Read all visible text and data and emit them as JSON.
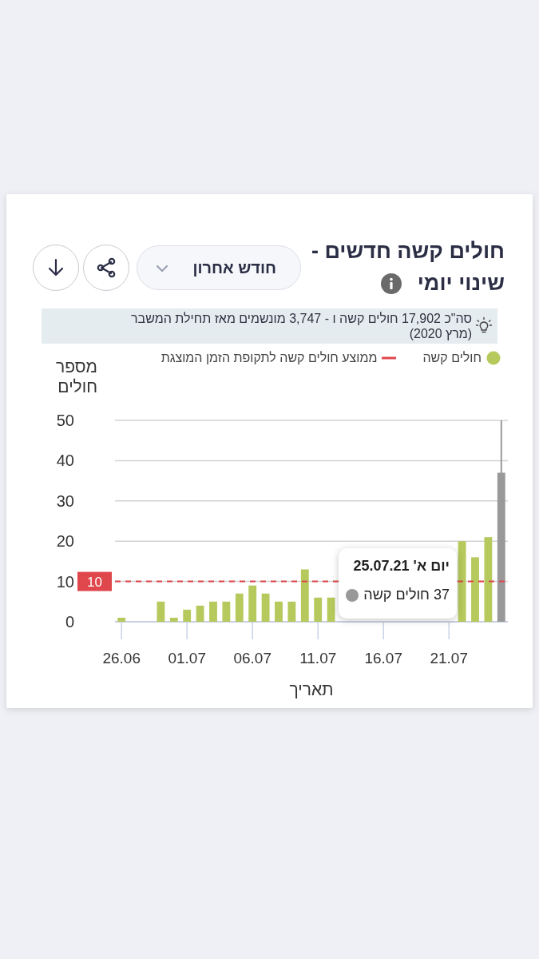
{
  "chart_data": {
    "type": "bar",
    "title": "חולים קשה חדשים - שינוי יומי",
    "subtitle": "סה\"כ 17,902 חולים קשה ו - 3,747 מונשמים מאז תחילת המשבר (מרץ 2020)",
    "xlabel": "תאריך",
    "ylabel": "מספר חולים",
    "x": [
      "--06-26",
      "--06-27",
      "--06-28",
      "--06-29",
      "--06-30",
      "--07-01",
      "--07-02",
      "--07-03",
      "--07-04",
      "--07-05",
      "--07-06",
      "--07-07",
      "--07-08",
      "--07-09",
      "--07-10",
      "--07-11",
      "--07-12",
      "--07-13",
      "--07-14",
      "--07-15",
      "--07-16",
      "--07-17",
      "--07-18",
      "--07-19",
      "--07-20",
      "--07-21",
      "--07-22",
      "--07-23",
      "--07-24",
      "--07-25"
    ],
    "xlim": [
      "--06-25T12:00",
      "--07-25T12:00"
    ],
    "xticks": [
      {
        "value": "--06-26",
        "label": "26.06"
      },
      {
        "value": "--07-01",
        "label": "01.07"
      },
      {
        "value": "--07-06",
        "label": "06.07"
      },
      {
        "value": "--07-11",
        "label": "11.07"
      },
      {
        "value": "--07-16",
        "label": "16.07"
      },
      {
        "value": "--07-21",
        "label": "21.07"
      }
    ],
    "ylim": [
      0,
      50
    ],
    "yticks": [
      0,
      10,
      20,
      30,
      40,
      50
    ],
    "grid": "y",
    "legend": "top right",
    "series": [
      {
        "name": "חולים קשה",
        "color": "#b5c95c",
        "colors": [
          "#b5c95c",
          "#b5c95c",
          "#b5c95c",
          "#b5c95c",
          "#b5c95c",
          "#b5c95c",
          "#b5c95c",
          "#b5c95c",
          "#b5c95c",
          "#b5c95c",
          "#b5c95c",
          "#b5c95c",
          "#b5c95c",
          "#b5c95c",
          "#b5c95c",
          "#b5c95c",
          "#b5c95c",
          null,
          null,
          null,
          null,
          null,
          null,
          null,
          null,
          null,
          "#b5c95c",
          "#b5c95c",
          "#b5c95c",
          "#999999"
        ],
        "values": [
          1,
          0,
          0,
          5,
          1,
          3,
          4,
          5,
          5,
          7,
          9,
          7,
          5,
          5,
          13,
          6,
          6,
          null,
          null,
          null,
          null,
          null,
          null,
          null,
          null,
          null,
          20,
          16,
          21,
          37
        ]
      },
      {
        "name": "ממוצע חולים קשה לתקופת הזמן המוצגת",
        "type": "line",
        "color": "#e0474c",
        "line_style": "dashed",
        "marker": "none",
        "x": [
          "--06-25T12:00",
          "--07-25T12:00"
        ],
        "values": [
          10,
          10
        ],
        "value_labels": [
          "10",
          null
        ]
      }
    ],
    "ref_lines": [
      {
        "axis": "x",
        "value": "--07-25",
        "color": "#999999"
      }
    ],
    "annotations": [
      "יום א' 25.07.21\n37 חולים קשה",
      "חודש אחרון"
    ]
  }
}
